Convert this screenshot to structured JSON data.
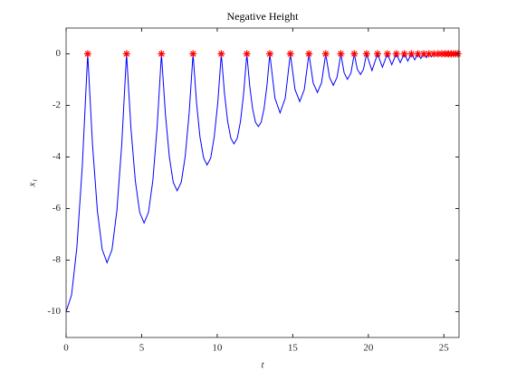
{
  "chart_data": {
    "type": "line",
    "title": "Negative Height",
    "xlabel": "t",
    "ylabel": "x₁",
    "xlim": [
      0,
      26
    ],
    "ylim": [
      -11,
      1
    ],
    "xticks": [
      0,
      5,
      10,
      15,
      20,
      25
    ],
    "yticks": [
      -10,
      -8,
      -6,
      -4,
      -2,
      0
    ],
    "series": [
      {
        "color": "#0000ff",
        "style": "line",
        "x": [
          0,
          0.36,
          0.71,
          1.07,
          1.43,
          1.75,
          2.07,
          2.39,
          2.71,
          3.04,
          3.36,
          3.68,
          4.0,
          4.29,
          4.58,
          4.87,
          5.16,
          5.45,
          5.74,
          6.02,
          6.31,
          6.57,
          6.83,
          7.09,
          7.35,
          7.62,
          7.88,
          8.14,
          8.4,
          8.63,
          8.86,
          9.1,
          9.33,
          9.57,
          9.8,
          10.04,
          10.27,
          10.48,
          10.69,
          10.9,
          11.11,
          11.33,
          11.54,
          11.75,
          11.96,
          12.15,
          12.34,
          12.53,
          12.72,
          12.91,
          13.1,
          13.29,
          13.48,
          13.82,
          14.16,
          14.5,
          14.84,
          15.15,
          15.46,
          15.76,
          16.07,
          16.35,
          16.63,
          16.9,
          17.18,
          17.43,
          17.68,
          17.93,
          18.18,
          18.4,
          18.62,
          18.85,
          19.07,
          19.27,
          19.48,
          19.68,
          19.88,
          20.24,
          20.61,
          20.93,
          21.26,
          21.55,
          21.85,
          22.11,
          22.38,
          22.61,
          22.85,
          23.07,
          23.28,
          23.47,
          23.67,
          23.84,
          24.01,
          24.17,
          24.33,
          24.47,
          24.61,
          24.73,
          24.86,
          24.97,
          25.09,
          25.19,
          25.29,
          25.39,
          25.48,
          25.56,
          25.64,
          25.72,
          25.79,
          25.86,
          25.93
        ],
        "values": [
          -10,
          -9.36,
          -7.53,
          -4.38,
          0,
          -3.54,
          -6.08,
          -7.59,
          -8.1,
          -7.59,
          -6.08,
          -3.54,
          0,
          -2.87,
          -4.92,
          -6.15,
          -6.56,
          -6.15,
          -4.92,
          -2.87,
          0,
          -2.32,
          -3.99,
          -4.98,
          -5.31,
          -4.98,
          -3.99,
          -2.32,
          0,
          -1.88,
          -3.23,
          -4.04,
          -4.31,
          -4.04,
          -3.23,
          -1.88,
          0,
          -1.53,
          -2.62,
          -3.27,
          -3.49,
          -3.27,
          -2.62,
          -1.53,
          0,
          -1.24,
          -2.12,
          -2.65,
          -2.82,
          -2.65,
          -2.12,
          -1.24,
          0,
          -1.72,
          -2.29,
          -1.72,
          0,
          -1.39,
          -1.85,
          -1.39,
          0,
          -1.13,
          -1.5,
          -1.13,
          0,
          -0.91,
          -1.22,
          -0.91,
          0,
          -0.74,
          -0.99,
          -0.74,
          0,
          -0.6,
          -0.8,
          -0.6,
          0,
          -0.65,
          0,
          -0.52,
          0,
          -0.42,
          0,
          -0.34,
          0,
          -0.28,
          0,
          -0.23,
          0,
          -0.18,
          0,
          -0.15,
          0,
          -0.12,
          0,
          -0.1,
          0,
          -0.08,
          0,
          -0.06,
          0,
          -0.05,
          0,
          -0.04,
          0,
          -0.03,
          0,
          -0.03,
          0,
          -0.02,
          0
        ]
      },
      {
        "color": "#ff0000",
        "style": "asterisk",
        "x": [
          1.43,
          4.0,
          6.31,
          8.4,
          10.27,
          11.96,
          13.48,
          14.84,
          16.07,
          17.18,
          18.18,
          19.07,
          19.88,
          20.61,
          21.26,
          21.85,
          22.38,
          22.85,
          23.28,
          23.67,
          24.01,
          24.33,
          24.61,
          24.86,
          25.09,
          25.29,
          25.48,
          25.64,
          25.79,
          25.93
        ],
        "values": [
          0,
          0,
          0,
          0,
          0,
          0,
          0,
          0,
          0,
          0,
          0,
          0,
          0,
          0,
          0,
          0,
          0,
          0,
          0,
          0,
          0,
          0,
          0,
          0,
          0,
          0,
          0,
          0,
          0,
          0
        ]
      }
    ]
  }
}
